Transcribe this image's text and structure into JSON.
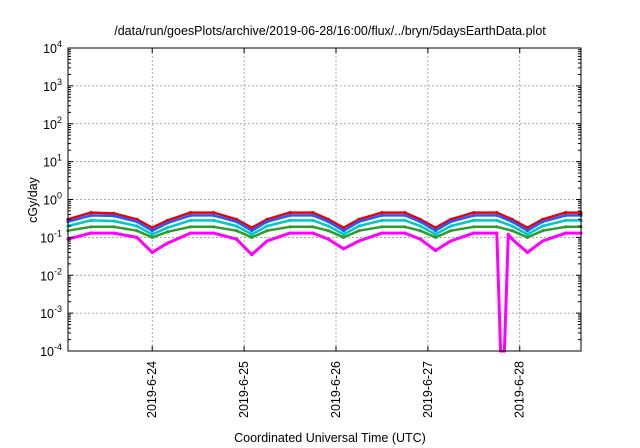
{
  "chart_data": {
    "type": "line",
    "title": "/data/run/goesPlots/archive/2019-06-28/16:00/flux/../bryn/5daysEarthData.plot",
    "xlabel": "Coordinated Universal Time (UTC)",
    "ylabel": "cGy/day",
    "y_scale": "log",
    "ylim": [
      0.0001,
      10000
    ],
    "xlim": [
      "2019-06-23T02:00",
      "2019-06-28T16:00"
    ],
    "y_ticks": [
      {
        "value": 0.0001,
        "base": "10",
        "exp": "-4"
      },
      {
        "value": 0.001,
        "base": "10",
        "exp": "-3"
      },
      {
        "value": 0.01,
        "base": "10",
        "exp": "-2"
      },
      {
        "value": 0.1,
        "base": "10",
        "exp": "-1"
      },
      {
        "value": 1,
        "base": "10",
        "exp": "0"
      },
      {
        "value": 10,
        "base": "10",
        "exp": "1"
      },
      {
        "value": 100,
        "base": "10",
        "exp": "2"
      },
      {
        "value": 1000,
        "base": "10",
        "exp": "3"
      },
      {
        "value": 10000,
        "base": "10",
        "exp": "4"
      }
    ],
    "x_ticks": [
      {
        "date": "2019-06-24",
        "label": "2019-6-24"
      },
      {
        "date": "2019-06-25",
        "label": "2019-6-25"
      },
      {
        "date": "2019-06-26",
        "label": "2019-6-26"
      },
      {
        "date": "2019-06-27",
        "label": "2019-6-27"
      },
      {
        "date": "2019-06-28",
        "label": "2019-6-28"
      }
    ],
    "grid": true,
    "legend": "none",
    "series": [
      {
        "color": "#e8000b",
        "values": [
          [
            "2019-06-23T02:00",
            0.3
          ],
          [
            "2019-06-23T08:00",
            0.45
          ],
          [
            "2019-06-23T14:00",
            0.43
          ],
          [
            "2019-06-23T20:00",
            0.3
          ],
          [
            "2019-06-24T00:00",
            0.18
          ],
          [
            "2019-06-24T04:00",
            0.28
          ],
          [
            "2019-06-24T10:00",
            0.45
          ],
          [
            "2019-06-24T16:00",
            0.45
          ],
          [
            "2019-06-24T22:00",
            0.3
          ],
          [
            "2019-06-25T02:00",
            0.18
          ],
          [
            "2019-06-25T06:00",
            0.3
          ],
          [
            "2019-06-25T12:00",
            0.45
          ],
          [
            "2019-06-25T18:00",
            0.45
          ],
          [
            "2019-06-25T22:00",
            0.3
          ],
          [
            "2019-06-26T02:00",
            0.18
          ],
          [
            "2019-06-26T06:00",
            0.3
          ],
          [
            "2019-06-26T12:00",
            0.45
          ],
          [
            "2019-06-26T18:00",
            0.45
          ],
          [
            "2019-06-26T22:00",
            0.3
          ],
          [
            "2019-06-27T02:00",
            0.18
          ],
          [
            "2019-06-27T06:00",
            0.3
          ],
          [
            "2019-06-27T12:00",
            0.45
          ],
          [
            "2019-06-27T18:00",
            0.45
          ],
          [
            "2019-06-27T22:00",
            0.3
          ],
          [
            "2019-06-28T02:00",
            0.18
          ],
          [
            "2019-06-28T06:00",
            0.3
          ],
          [
            "2019-06-28T12:00",
            0.45
          ],
          [
            "2019-06-28T16:00",
            0.45
          ]
        ]
      },
      {
        "color": "#1f5cff",
        "values": [
          [
            "2019-06-23T02:00",
            0.26
          ],
          [
            "2019-06-23T08:00",
            0.38
          ],
          [
            "2019-06-23T14:00",
            0.37
          ],
          [
            "2019-06-23T20:00",
            0.26
          ],
          [
            "2019-06-24T00:00",
            0.15
          ],
          [
            "2019-06-24T04:00",
            0.24
          ],
          [
            "2019-06-24T10:00",
            0.38
          ],
          [
            "2019-06-24T16:00",
            0.38
          ],
          [
            "2019-06-24T22:00",
            0.26
          ],
          [
            "2019-06-25T02:00",
            0.15
          ],
          [
            "2019-06-25T06:00",
            0.26
          ],
          [
            "2019-06-25T12:00",
            0.38
          ],
          [
            "2019-06-25T18:00",
            0.38
          ],
          [
            "2019-06-25T22:00",
            0.26
          ],
          [
            "2019-06-26T02:00",
            0.15
          ],
          [
            "2019-06-26T06:00",
            0.26
          ],
          [
            "2019-06-26T12:00",
            0.38
          ],
          [
            "2019-06-26T18:00",
            0.38
          ],
          [
            "2019-06-26T22:00",
            0.26
          ],
          [
            "2019-06-27T02:00",
            0.15
          ],
          [
            "2019-06-27T06:00",
            0.26
          ],
          [
            "2019-06-27T12:00",
            0.38
          ],
          [
            "2019-06-27T18:00",
            0.38
          ],
          [
            "2019-06-27T22:00",
            0.26
          ],
          [
            "2019-06-28T02:00",
            0.15
          ],
          [
            "2019-06-28T06:00",
            0.26
          ],
          [
            "2019-06-28T12:00",
            0.38
          ],
          [
            "2019-06-28T16:00",
            0.38
          ]
        ]
      },
      {
        "color": "#00c8c8",
        "values": [
          [
            "2019-06-23T02:00",
            0.2
          ],
          [
            "2019-06-23T08:00",
            0.28
          ],
          [
            "2019-06-23T14:00",
            0.27
          ],
          [
            "2019-06-23T20:00",
            0.2
          ],
          [
            "2019-06-24T00:00",
            0.12
          ],
          [
            "2019-06-24T04:00",
            0.18
          ],
          [
            "2019-06-24T10:00",
            0.28
          ],
          [
            "2019-06-24T16:00",
            0.28
          ],
          [
            "2019-06-24T22:00",
            0.2
          ],
          [
            "2019-06-25T02:00",
            0.12
          ],
          [
            "2019-06-25T06:00",
            0.2
          ],
          [
            "2019-06-25T12:00",
            0.28
          ],
          [
            "2019-06-25T18:00",
            0.28
          ],
          [
            "2019-06-25T22:00",
            0.2
          ],
          [
            "2019-06-26T02:00",
            0.12
          ],
          [
            "2019-06-26T06:00",
            0.2
          ],
          [
            "2019-06-26T12:00",
            0.28
          ],
          [
            "2019-06-26T18:00",
            0.28
          ],
          [
            "2019-06-26T22:00",
            0.2
          ],
          [
            "2019-06-27T02:00",
            0.12
          ],
          [
            "2019-06-27T06:00",
            0.2
          ],
          [
            "2019-06-27T12:00",
            0.28
          ],
          [
            "2019-06-27T18:00",
            0.28
          ],
          [
            "2019-06-27T22:00",
            0.2
          ],
          [
            "2019-06-28T02:00",
            0.12
          ],
          [
            "2019-06-28T06:00",
            0.2
          ],
          [
            "2019-06-28T12:00",
            0.28
          ],
          [
            "2019-06-28T16:00",
            0.28
          ]
        ]
      },
      {
        "color": "#2a9d2a",
        "values": [
          [
            "2019-06-23T02:00",
            0.15
          ],
          [
            "2019-06-23T08:00",
            0.19
          ],
          [
            "2019-06-23T14:00",
            0.19
          ],
          [
            "2019-06-23T20:00",
            0.15
          ],
          [
            "2019-06-24T00:00",
            0.1
          ],
          [
            "2019-06-24T04:00",
            0.14
          ],
          [
            "2019-06-24T10:00",
            0.19
          ],
          [
            "2019-06-24T16:00",
            0.19
          ],
          [
            "2019-06-24T22:00",
            0.15
          ],
          [
            "2019-06-25T02:00",
            0.1
          ],
          [
            "2019-06-25T06:00",
            0.15
          ],
          [
            "2019-06-25T12:00",
            0.19
          ],
          [
            "2019-06-25T18:00",
            0.19
          ],
          [
            "2019-06-25T22:00",
            0.15
          ],
          [
            "2019-06-26T02:00",
            0.1
          ],
          [
            "2019-06-26T06:00",
            0.15
          ],
          [
            "2019-06-26T12:00",
            0.19
          ],
          [
            "2019-06-26T18:00",
            0.19
          ],
          [
            "2019-06-26T22:00",
            0.15
          ],
          [
            "2019-06-27T02:00",
            0.1
          ],
          [
            "2019-06-27T06:00",
            0.15
          ],
          [
            "2019-06-27T12:00",
            0.19
          ],
          [
            "2019-06-27T18:00",
            0.19
          ],
          [
            "2019-06-27T22:00",
            0.15
          ],
          [
            "2019-06-28T02:00",
            0.1
          ],
          [
            "2019-06-28T06:00",
            0.15
          ],
          [
            "2019-06-28T12:00",
            0.19
          ],
          [
            "2019-06-28T16:00",
            0.19
          ]
        ]
      },
      {
        "color": "#ff00ff",
        "values": [
          [
            "2019-06-23T02:00",
            0.09
          ],
          [
            "2019-06-23T08:00",
            0.13
          ],
          [
            "2019-06-23T14:00",
            0.13
          ],
          [
            "2019-06-23T20:00",
            0.1
          ],
          [
            "2019-06-24T00:00",
            0.04
          ],
          [
            "2019-06-24T04:00",
            0.07
          ],
          [
            "2019-06-24T10:00",
            0.13
          ],
          [
            "2019-06-24T16:00",
            0.13
          ],
          [
            "2019-06-24T22:00",
            0.09
          ],
          [
            "2019-06-25T02:00",
            0.035
          ],
          [
            "2019-06-25T06:00",
            0.08
          ],
          [
            "2019-06-25T12:00",
            0.13
          ],
          [
            "2019-06-25T18:00",
            0.13
          ],
          [
            "2019-06-25T22:00",
            0.09
          ],
          [
            "2019-06-26T02:00",
            0.05
          ],
          [
            "2019-06-26T06:00",
            0.08
          ],
          [
            "2019-06-26T12:00",
            0.13
          ],
          [
            "2019-06-26T18:00",
            0.13
          ],
          [
            "2019-06-26T22:00",
            0.09
          ],
          [
            "2019-06-27T02:00",
            0.045
          ],
          [
            "2019-06-27T06:00",
            0.08
          ],
          [
            "2019-06-27T12:00",
            0.13
          ],
          [
            "2019-06-27T18:00",
            0.13
          ],
          [
            "2019-06-27T19:00",
            0.0001
          ],
          [
            "2019-06-27T20:00",
            0.0001
          ],
          [
            "2019-06-27T21:00",
            0.12
          ],
          [
            "2019-06-27T22:00",
            0.09
          ],
          [
            "2019-06-28T02:00",
            0.04
          ],
          [
            "2019-06-28T06:00",
            0.08
          ],
          [
            "2019-06-28T12:00",
            0.13
          ],
          [
            "2019-06-28T16:00",
            0.13
          ]
        ]
      }
    ]
  }
}
